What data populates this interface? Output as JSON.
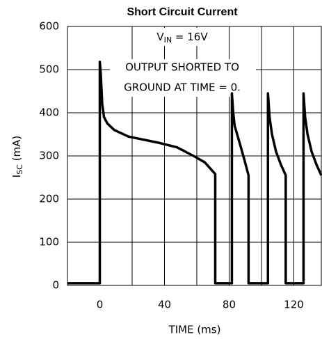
{
  "chart_data": {
    "type": "line",
    "title": "Short Circuit Current",
    "xlabel": "TIME (ms)",
    "ylabel": {
      "main": "I",
      "sub": "SC",
      "rest": " (mA)"
    },
    "annotations": [
      {
        "main": "V",
        "sub": "IN",
        "rest": " = 16V"
      },
      "OUTPUT SHORTED TO",
      "GROUND AT TIME = 0."
    ],
    "xlim": [
      -20,
      137
    ],
    "ylim": [
      0,
      600
    ],
    "xticks": [
      0,
      40,
      80,
      120
    ],
    "yticks": [
      0,
      100,
      200,
      300,
      400,
      500,
      600
    ],
    "xgrid": [
      20,
      40,
      60,
      80,
      100,
      120
    ],
    "grid": true,
    "color": "#000000",
    "x": [
      -20,
      0,
      0,
      0.6,
      1.5,
      2.6,
      4.7,
      9,
      17.6,
      24,
      37,
      47.7,
      58,
      65,
      71.4,
      71.4,
      81.7,
      81.7,
      82.5,
      83.4,
      86.5,
      89.5,
      92,
      92,
      104,
      104,
      105,
      106.5,
      109,
      112,
      115,
      115,
      126,
      126,
      127,
      128.5,
      131,
      134,
      137
    ],
    "y": [
      5,
      5,
      518,
      490,
      420,
      390,
      375,
      360,
      345,
      340,
      330,
      320,
      300,
      285,
      258,
      5,
      5,
      445,
      400,
      370,
      330,
      290,
      255,
      5,
      5,
      445,
      390,
      350,
      310,
      280,
      255,
      5,
      5,
      445,
      390,
      350,
      310,
      280,
      255
    ]
  }
}
